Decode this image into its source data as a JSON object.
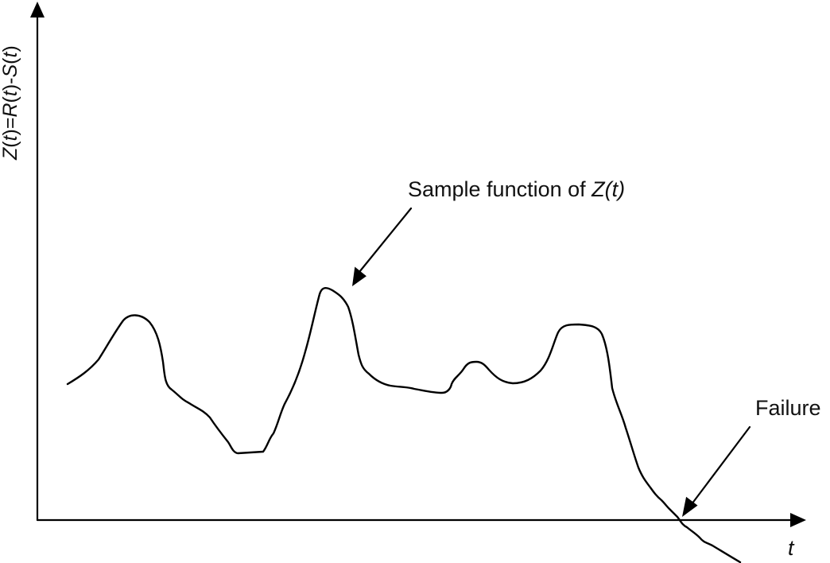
{
  "axes": {
    "y_label_parts": [
      "Z",
      "(",
      "t",
      ")=",
      "R",
      "(",
      "t",
      ")-",
      "S",
      "(",
      "t",
      ")"
    ],
    "x_label": "t"
  },
  "annotations": {
    "sample": {
      "prefix": "Sample function of ",
      "italic": "Z(t)"
    },
    "failure": "Failure"
  }
}
